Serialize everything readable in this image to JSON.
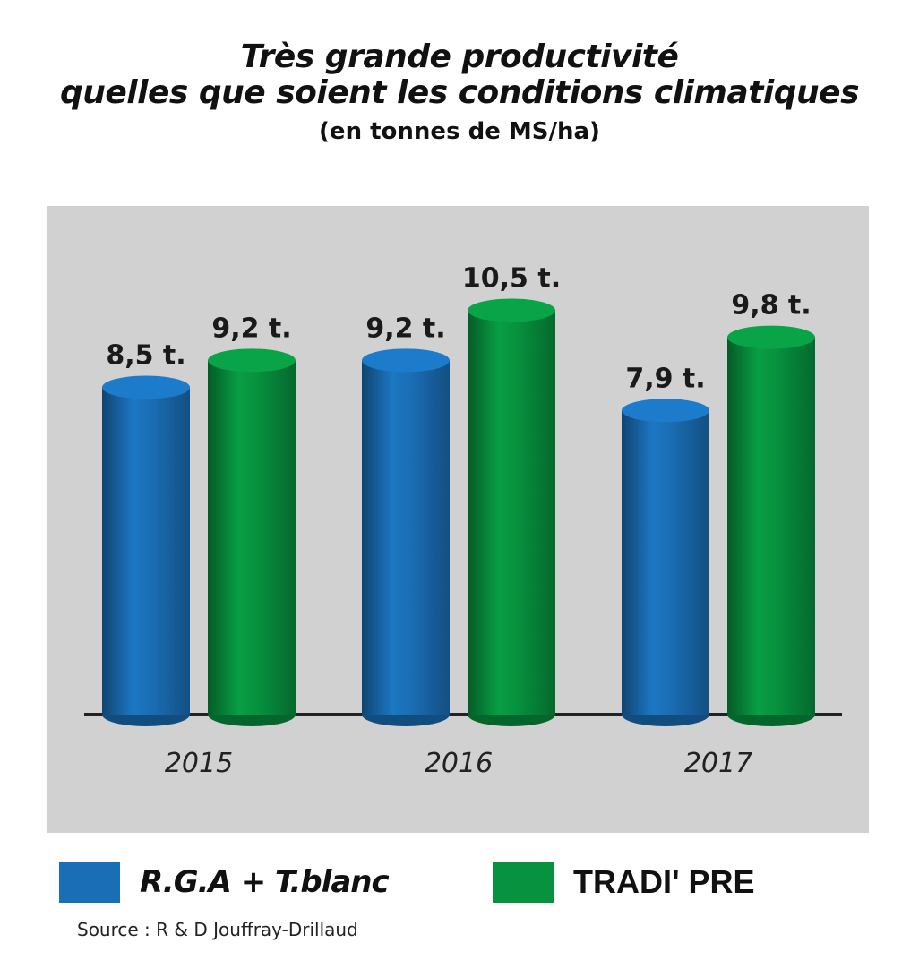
{
  "chart_data": {
    "type": "bar",
    "title_lines": [
      "Très grande productivité",
      "quelles que soient les conditions climatiques"
    ],
    "subtitle": "(en tonnes de MS/ha)",
    "categories": [
      "2015",
      "2016",
      "2017"
    ],
    "series": [
      {
        "name": "R.G.A + T.blanc",
        "values": [
          8.5,
          9.2,
          7.9
        ],
        "labels": [
          "8,5 t.",
          "9,2 t.",
          "7,9 t."
        ],
        "color": "#1a6eb5"
      },
      {
        "name": "TRADI' PRE",
        "values": [
          9.2,
          10.5,
          9.8
        ],
        "labels": [
          "9,2 t.",
          "10,5 t.",
          "9,8 t."
        ],
        "color": "#07923f"
      }
    ],
    "ylim": [
      0,
      11
    ],
    "grid": false,
    "legend_position": "bottom",
    "background": "#d1d1d1"
  },
  "source": "Source : R & D Jouffray-Drillaud"
}
